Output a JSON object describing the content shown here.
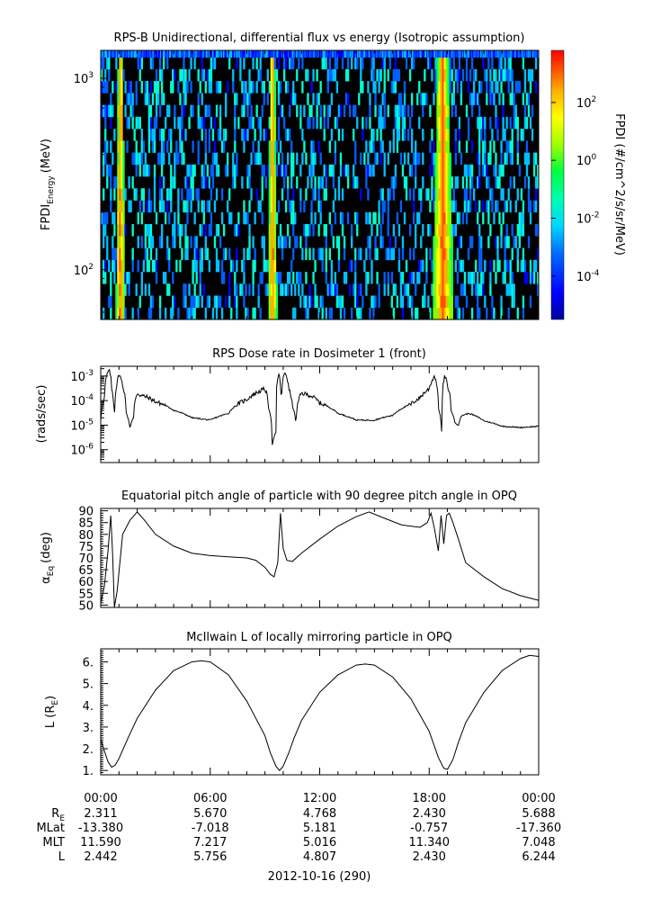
{
  "chart_data": [
    {
      "type": "heatmap",
      "title": "RPS-B  Unidirectional, differential flux vs energy (Isotropic assumption)",
      "ylabel_main": "FPDI",
      "ylabel_sub": "Energy",
      "ylabel_unit": "(MeV)",
      "yscale": "log",
      "ylim": [
        55,
        1400
      ],
      "yticks": [
        {
          "value": 100,
          "label": "10",
          "exp": "2"
        },
        {
          "value": 1000,
          "label": "10",
          "exp": "3"
        }
      ],
      "colorbar": {
        "label": "FPDI (#/cm^2/s/sr/MeV)",
        "scale": "log",
        "range_log10": [
          -5.5,
          3.8
        ],
        "ticks": [
          {
            "exp": "2",
            "value": 2
          },
          {
            "exp": "0",
            "value": 0
          },
          {
            "exp": "-2",
            "value": -2
          },
          {
            "exp": "-4",
            "value": -4
          }
        ]
      },
      "high_flux_bands": [
        {
          "start": "00:50",
          "end": "01:20"
        },
        {
          "start": "09:10",
          "end": "09:40"
        },
        {
          "start": "18:10",
          "end": "19:20"
        }
      ]
    },
    {
      "type": "line",
      "title": "RPS  Dose rate in Dosimeter 1 (front)",
      "ylabel": "(rads/sec)",
      "yscale": "log",
      "ylim": [
        3e-07,
        0.0025
      ],
      "yticks": [
        {
          "value": 1e-06,
          "exp": "-6"
        },
        {
          "value": 1e-05,
          "exp": "-5"
        },
        {
          "value": 0.0001,
          "exp": "-4"
        },
        {
          "value": 0.001,
          "exp": "-3"
        }
      ],
      "x_hours": [
        0.0,
        0.2,
        0.4,
        0.5,
        0.6,
        0.75,
        0.9,
        1.0,
        1.2,
        1.4,
        1.6,
        1.8,
        1.9,
        2.0,
        2.2,
        2.4,
        3,
        4,
        5,
        6,
        7,
        8,
        8.5,
        9.0,
        9.2,
        9.4,
        9.6,
        9.75,
        9.9,
        10.1,
        10.3,
        10.5,
        10.7,
        11.0,
        11.5,
        12,
        13,
        14,
        15,
        16,
        17,
        17.5,
        18.0,
        18.3,
        18.5,
        18.7,
        18.85,
        19.0,
        19.2,
        19.4,
        19.6,
        19.8,
        20.2,
        21,
        22,
        23,
        24
      ],
      "values": [
        1.5e-05,
        0.00012,
        0.0015,
        0.0015,
        0.0003,
        5e-07,
        0.0005,
        0.0012,
        0.0004,
        3e-05,
        8e-06,
        2e-05,
        0.00012,
        0.0002,
        0.00016,
        0.00015,
        9e-05,
        4e-05,
        2e-05,
        1.6e-05,
        3e-05,
        0.00011,
        0.0002,
        0.0003,
        5e-05,
        1.5e-06,
        5e-06,
        0.0012,
        5e-05,
        0.0015,
        0.0003,
        6e-05,
        1e-05,
        0.0002,
        0.00016,
        8e-05,
        3e-05,
        1.6e-05,
        1.6e-05,
        2.5e-05,
        7e-05,
        0.00013,
        0.0003,
        0.001,
        5e-05,
        3e-07,
        0.001,
        0.0004,
        4e-05,
        1.3e-05,
        1e-05,
        2.5e-05,
        3e-05,
        1.5e-05,
        9e-06,
        8e-06,
        9e-06
      ]
    },
    {
      "type": "line",
      "title": "Equatorial pitch angle of particle with 90 degree pitch angle in OPQ",
      "ylabel_main": "α",
      "ylabel_sub": "Eq",
      "ylabel_unit": "(deg)",
      "ylim": [
        49,
        91
      ],
      "yticks": [
        50,
        55,
        60,
        65,
        70,
        75,
        80,
        85,
        90
      ],
      "x_hours": [
        0.0,
        0.2,
        0.4,
        0.55,
        0.65,
        0.75,
        0.9,
        1.2,
        1.6,
        2.0,
        2.4,
        3,
        4,
        5,
        6,
        7,
        8,
        8.5,
        9.0,
        9.3,
        9.5,
        9.7,
        9.85,
        10.0,
        10.2,
        10.5,
        11,
        12,
        13,
        14,
        14.7,
        15.5,
        16.5,
        17.5,
        17.9,
        18.1,
        18.3,
        18.5,
        18.65,
        18.8,
        18.95,
        19.1,
        19.3,
        19.6,
        20,
        21,
        22,
        23,
        24
      ],
      "values": [
        51,
        58,
        73,
        88,
        72,
        49,
        56,
        80,
        86,
        89.5,
        86,
        80,
        75,
        72,
        71,
        70.5,
        70,
        69,
        66,
        63,
        62,
        68,
        89,
        74,
        69,
        68.5,
        72,
        78,
        83.5,
        87.5,
        89.5,
        87,
        84,
        83,
        85,
        89,
        82,
        73,
        88,
        76,
        88,
        89,
        85,
        78,
        68,
        62,
        57,
        54,
        52
      ]
    },
    {
      "type": "line",
      "title": "McIlwain L of locally mirroring particle in OPQ",
      "ylabel": "L (R",
      "ylabel_sub": "E",
      "ylabel_close": ")",
      "ylim": [
        0.8,
        6.6
      ],
      "yticks": [
        1,
        2,
        3,
        4,
        5,
        6
      ],
      "x_hours": [
        0.0,
        0.2,
        0.4,
        0.6,
        0.8,
        1.0,
        1.5,
        2.0,
        3,
        4,
        5,
        5.5,
        6,
        7,
        8,
        9,
        9.3,
        9.6,
        9.8,
        10.0,
        10.3,
        10.6,
        11,
        12,
        13,
        14,
        14.5,
        15,
        16,
        17,
        18,
        18.5,
        18.8,
        19.0,
        19.3,
        19.6,
        20,
        21,
        22,
        23,
        23.5,
        24
      ],
      "values": [
        2.44,
        1.9,
        1.4,
        1.15,
        1.25,
        1.55,
        2.5,
        3.4,
        4.7,
        5.6,
        6.0,
        6.05,
        6.0,
        5.4,
        4.2,
        2.6,
        1.8,
        1.2,
        1.0,
        1.2,
        1.8,
        2.5,
        3.3,
        4.6,
        5.4,
        5.85,
        5.9,
        5.85,
        5.3,
        4.3,
        2.8,
        1.6,
        1.1,
        1.05,
        1.5,
        2.3,
        3.2,
        4.6,
        5.6,
        6.15,
        6.3,
        6.25
      ]
    }
  ],
  "xaxis": {
    "ticks": [
      "00:00",
      "06:00",
      "12:00",
      "18:00",
      "00:00"
    ],
    "ephemeris": [
      {
        "label": "R",
        "sub": "E",
        "values": [
          "2.311",
          "5.670",
          "4.768",
          "2.430",
          "5.688"
        ]
      },
      {
        "label": "MLat",
        "sub": "",
        "values": [
          "-13.380",
          "-7.018",
          "5.181",
          "-0.757",
          "-17.360"
        ]
      },
      {
        "label": "MLT",
        "sub": "",
        "values": [
          "11.590",
          "7.217",
          "5.016",
          "11.340",
          "7.048"
        ]
      },
      {
        "label": "L",
        "sub": "",
        "values": [
          "2.442",
          "5.756",
          "4.807",
          "2.430",
          "6.244"
        ]
      }
    ],
    "date_label": "2012-10-16 (290)"
  },
  "colors": {
    "line": "#000000",
    "heatmap_background": "#000000",
    "colormap": [
      "#0000c0",
      "#0000ff",
      "#0060ff",
      "#00c0ff",
      "#00ffd0",
      "#00ff60",
      "#80ff00",
      "#ffff00",
      "#ffb000",
      "#ff5000",
      "#ff0000"
    ]
  }
}
